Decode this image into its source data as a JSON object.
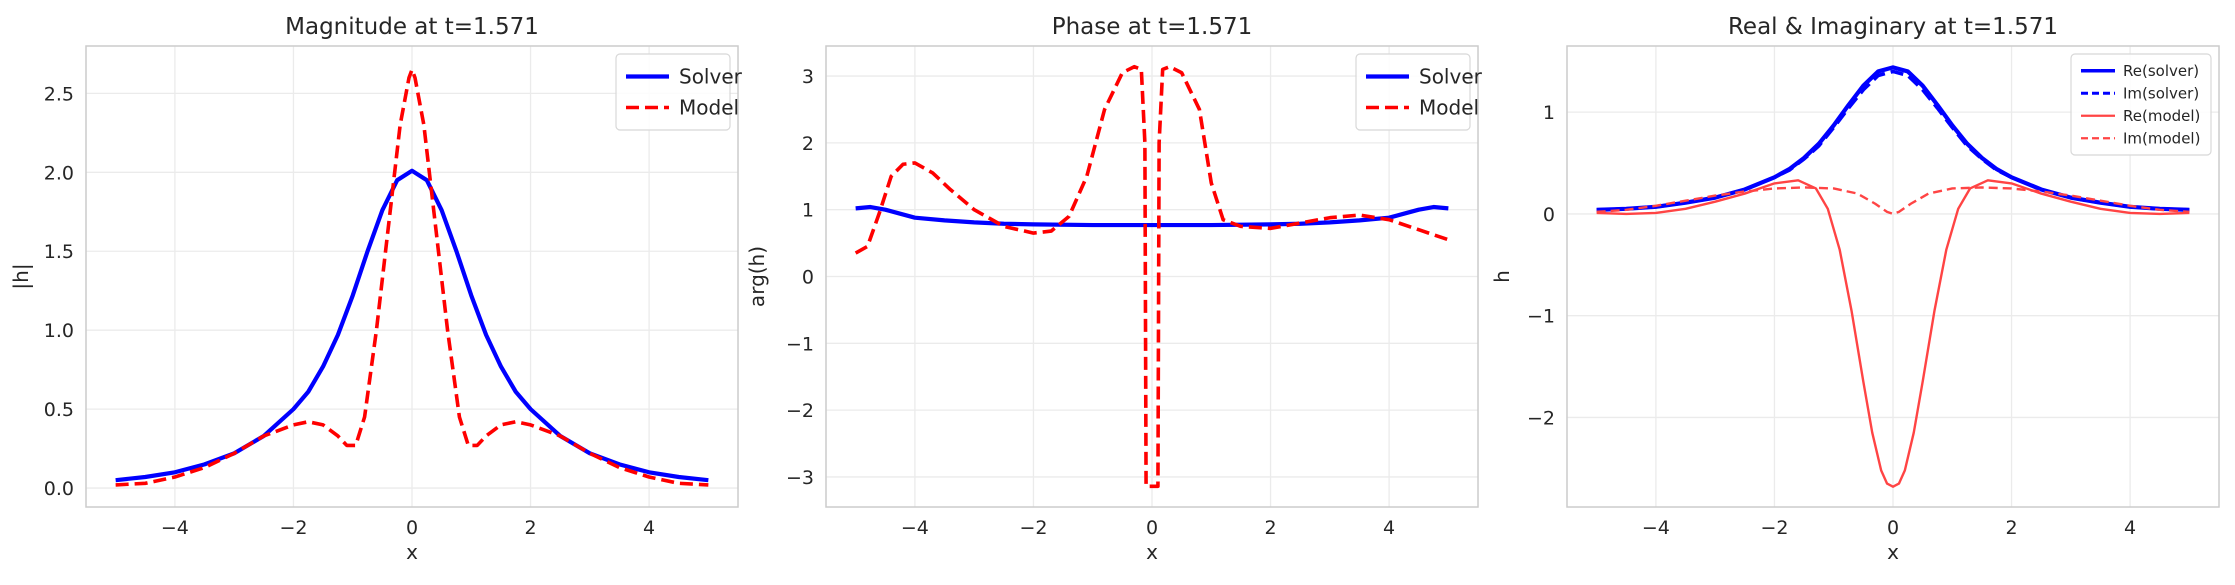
{
  "colors": {
    "solver": "#0000ff",
    "model": "#ff0000",
    "model_light": "#ff4444",
    "grid": "#ebebeb",
    "frame": "#cccccc",
    "text": "#262626"
  },
  "chart_data": [
    {
      "type": "line",
      "title": "Magnitude at t=1.571",
      "xlabel": "x",
      "ylabel": "|h|",
      "xlim": [
        -5.5,
        5.5
      ],
      "ylim": [
        -0.12,
        2.8
      ],
      "xticks": [
        -4,
        -2,
        0,
        2,
        4
      ],
      "yticks": [
        0.0,
        0.5,
        1.0,
        1.5,
        2.0,
        2.5
      ],
      "xtick_labels": [
        "−4",
        "−2",
        "0",
        "2",
        "4"
      ],
      "ytick_labels": [
        "0.0",
        "0.5",
        "1.0",
        "1.5",
        "2.0",
        "2.5"
      ],
      "grid": true,
      "legend": "top-right",
      "series": [
        {
          "name": "Solver",
          "style": "solid",
          "color": "#0000ff",
          "x": [
            -5,
            -4.5,
            -4,
            -3.5,
            -3,
            -2.5,
            -2,
            -1.75,
            -1.5,
            -1.25,
            -1,
            -0.75,
            -0.5,
            -0.25,
            0,
            0.25,
            0.5,
            0.75,
            1,
            1.25,
            1.5,
            1.75,
            2,
            2.5,
            3,
            3.5,
            4,
            4.5,
            5
          ],
          "y": [
            0.05,
            0.07,
            0.1,
            0.15,
            0.22,
            0.33,
            0.5,
            0.61,
            0.77,
            0.97,
            1.22,
            1.5,
            1.76,
            1.95,
            2.01,
            1.95,
            1.76,
            1.5,
            1.22,
            0.97,
            0.77,
            0.61,
            0.5,
            0.33,
            0.22,
            0.15,
            0.1,
            0.07,
            0.05
          ]
        },
        {
          "name": "Model",
          "style": "dashed",
          "color": "#ff0000",
          "x": [
            -5,
            -4.5,
            -4,
            -3.5,
            -3,
            -2.5,
            -2,
            -1.75,
            -1.5,
            -1.25,
            -1.1,
            -0.95,
            -0.8,
            -0.6,
            -0.4,
            -0.2,
            -0.05,
            0,
            0.05,
            0.2,
            0.4,
            0.6,
            0.8,
            0.95,
            1.1,
            1.25,
            1.5,
            1.75,
            2,
            2.5,
            3,
            3.5,
            4,
            4.5,
            5
          ],
          "y": [
            0.02,
            0.03,
            0.07,
            0.13,
            0.22,
            0.33,
            0.4,
            0.42,
            0.4,
            0.33,
            0.27,
            0.27,
            0.45,
            1.0,
            1.65,
            2.3,
            2.6,
            2.65,
            2.6,
            2.3,
            1.65,
            1.0,
            0.45,
            0.27,
            0.27,
            0.33,
            0.4,
            0.42,
            0.4,
            0.33,
            0.22,
            0.13,
            0.07,
            0.03,
            0.02
          ]
        }
      ]
    },
    {
      "type": "line",
      "title": "Phase at t=1.571",
      "xlabel": "x",
      "ylabel": "arg(h)",
      "xlim": [
        -5.5,
        5.5
      ],
      "ylim": [
        -3.45,
        3.45
      ],
      "xticks": [
        -4,
        -2,
        0,
        2,
        4
      ],
      "yticks": [
        -3,
        -2,
        -1,
        0,
        1,
        2,
        3
      ],
      "xtick_labels": [
        "−4",
        "−2",
        "0",
        "2",
        "4"
      ],
      "ytick_labels": [
        "−3",
        "−2",
        "−1",
        "0",
        "1",
        "2",
        "3"
      ],
      "grid": true,
      "legend": "top-right",
      "series": [
        {
          "name": "Solver",
          "style": "solid",
          "color": "#0000ff",
          "x": [
            -5,
            -4.75,
            -4.5,
            -4.25,
            -4,
            -3.5,
            -3,
            -2.5,
            -2,
            -1,
            0,
            1,
            2,
            2.5,
            3,
            3.5,
            4,
            4.25,
            4.5,
            4.75,
            5
          ],
          "y": [
            1.02,
            1.04,
            1.0,
            0.94,
            0.88,
            0.84,
            0.81,
            0.79,
            0.78,
            0.77,
            0.77,
            0.77,
            0.78,
            0.79,
            0.81,
            0.84,
            0.88,
            0.94,
            1.0,
            1.04,
            1.02
          ]
        },
        {
          "name": "Model",
          "style": "dashed",
          "color": "#ff0000",
          "x": [
            -5,
            -4.8,
            -4.6,
            -4.4,
            -4.2,
            -4.0,
            -3.7,
            -3.4,
            -3.0,
            -2.5,
            -2.0,
            -1.7,
            -1.4,
            -1.1,
            -0.8,
            -0.5,
            -0.3,
            -0.18,
            -0.12,
            -0.1,
            -0.05,
            0,
            0.05,
            0.1,
            0.12,
            0.18,
            0.3,
            0.5,
            0.8,
            1.0,
            1.2,
            1.5,
            2.0,
            2.5,
            3.0,
            3.5,
            4.0,
            4.5,
            5.0
          ],
          "y": [
            0.35,
            0.45,
            0.95,
            1.5,
            1.68,
            1.7,
            1.55,
            1.3,
            1.0,
            0.75,
            0.65,
            0.68,
            0.9,
            1.5,
            2.5,
            3.05,
            3.14,
            3.1,
            2.0,
            -3.14,
            -3.14,
            -3.14,
            -3.14,
            -3.14,
            2.0,
            3.1,
            3.14,
            3.05,
            2.5,
            1.4,
            0.85,
            0.75,
            0.72,
            0.8,
            0.88,
            0.92,
            0.85,
            0.7,
            0.55
          ]
        }
      ]
    },
    {
      "type": "line",
      "title": "Real & Imaginary at t=1.571",
      "xlabel": "x",
      "ylabel": "h",
      "xlim": [
        -5.5,
        5.5
      ],
      "ylim": [
        -2.88,
        1.65
      ],
      "xticks": [
        -4,
        -2,
        0,
        2,
        4
      ],
      "yticks": [
        -2,
        -1,
        0,
        1
      ],
      "xtick_labels": [
        "−4",
        "−2",
        "0",
        "2",
        "4"
      ],
      "ytick_labels": [
        "−2",
        "−1",
        "0",
        "1"
      ],
      "grid": true,
      "legend": "top-right",
      "series": [
        {
          "name": "Re(solver)",
          "style": "solid",
          "color": "#0000ff",
          "x": [
            -5,
            -4.5,
            -4,
            -3.5,
            -3,
            -2.5,
            -2,
            -1.75,
            -1.5,
            -1.25,
            -1,
            -0.75,
            -0.5,
            -0.25,
            0,
            0.25,
            0.5,
            0.75,
            1,
            1.25,
            1.5,
            1.75,
            2,
            2.5,
            3,
            3.5,
            4,
            4.5,
            5
          ],
          "y": [
            0.04,
            0.05,
            0.07,
            0.11,
            0.16,
            0.24,
            0.36,
            0.44,
            0.55,
            0.69,
            0.87,
            1.07,
            1.26,
            1.4,
            1.44,
            1.4,
            1.26,
            1.07,
            0.87,
            0.69,
            0.55,
            0.44,
            0.36,
            0.24,
            0.16,
            0.11,
            0.07,
            0.05,
            0.04
          ]
        },
        {
          "name": "Im(solver)",
          "style": "dashed",
          "color": "#0000ff",
          "x": [
            -5,
            -4.5,
            -4,
            -3.5,
            -3,
            -2.5,
            -2,
            -1.75,
            -1.5,
            -1.25,
            -1,
            -0.75,
            -0.5,
            -0.25,
            0,
            0.25,
            0.5,
            0.75,
            1,
            1.25,
            1.5,
            1.75,
            2,
            2.5,
            3,
            3.5,
            4,
            4.5,
            5
          ],
          "y": [
            0.04,
            0.05,
            0.07,
            0.11,
            0.16,
            0.24,
            0.36,
            0.43,
            0.54,
            0.67,
            0.85,
            1.04,
            1.22,
            1.36,
            1.4,
            1.36,
            1.22,
            1.04,
            0.85,
            0.67,
            0.54,
            0.43,
            0.36,
            0.24,
            0.16,
            0.11,
            0.07,
            0.05,
            0.04
          ]
        },
        {
          "name": "Re(model)",
          "style": "solid-thin",
          "color": "#ff4444",
          "x": [
            -5,
            -4.5,
            -4,
            -3.5,
            -3,
            -2.5,
            -2,
            -1.6,
            -1.3,
            -1.1,
            -0.9,
            -0.7,
            -0.5,
            -0.35,
            -0.2,
            -0.1,
            0,
            0.1,
            0.2,
            0.35,
            0.5,
            0.7,
            0.9,
            1.1,
            1.3,
            1.6,
            2,
            2.5,
            3,
            3.5,
            4,
            4.5,
            5
          ],
          "y": [
            0.01,
            0.0,
            0.01,
            0.05,
            0.12,
            0.2,
            0.3,
            0.33,
            0.25,
            0.05,
            -0.35,
            -0.95,
            -1.65,
            -2.15,
            -2.52,
            -2.65,
            -2.68,
            -2.65,
            -2.52,
            -2.15,
            -1.65,
            -0.95,
            -0.35,
            0.05,
            0.25,
            0.33,
            0.3,
            0.2,
            0.12,
            0.05,
            0.01,
            0.0,
            0.01
          ]
        },
        {
          "name": "Im(model)",
          "style": "dashed-thin",
          "color": "#ff4444",
          "x": [
            -5,
            -4.5,
            -4,
            -3.5,
            -3,
            -2.5,
            -2,
            -1.5,
            -1.0,
            -0.6,
            -0.3,
            -0.1,
            0,
            0.1,
            0.3,
            0.6,
            1.0,
            1.5,
            2,
            2.5,
            3,
            3.5,
            4,
            4.5,
            5
          ],
          "y": [
            0.02,
            0.04,
            0.08,
            0.13,
            0.18,
            0.22,
            0.25,
            0.26,
            0.25,
            0.2,
            0.1,
            0.02,
            0.0,
            0.02,
            0.1,
            0.2,
            0.25,
            0.26,
            0.25,
            0.22,
            0.18,
            0.13,
            0.08,
            0.04,
            0.02
          ]
        }
      ]
    }
  ]
}
